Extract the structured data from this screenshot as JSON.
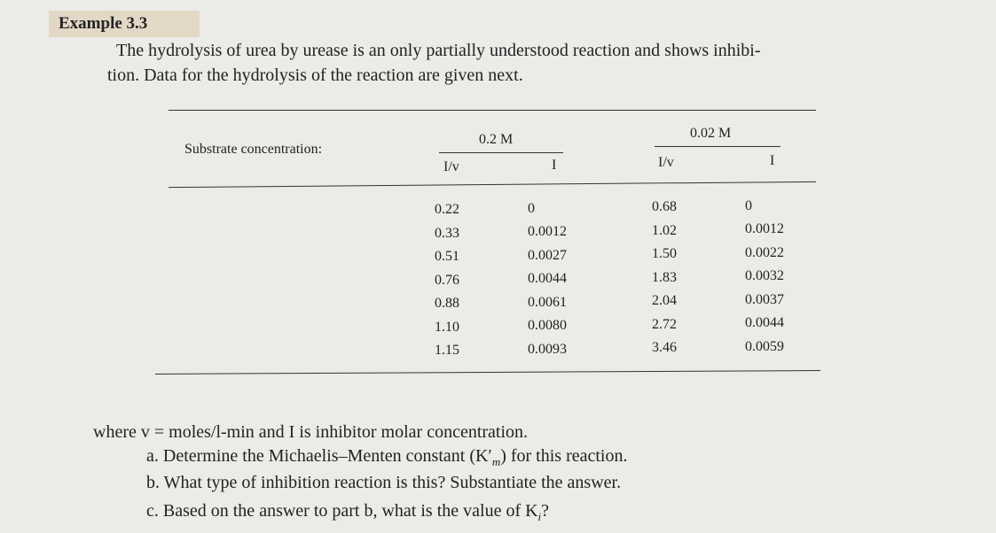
{
  "heading": "Example 3.3",
  "intro": {
    "lines": [
      "The hydrolysis of urea by urease is an only partially understood reaction and shows inhibi-",
      "tion. Data for the hydrolysis of the reaction are given next."
    ]
  },
  "table": {
    "row_label": "Substrate concentration:",
    "groups": [
      "0.2 M",
      "0.02 M"
    ],
    "columns": [
      "I/v",
      "I",
      "I/v",
      "I"
    ],
    "rows": [
      [
        "0.22",
        "0",
        "0.68",
        "0"
      ],
      [
        "0.33",
        "0.0012",
        "1.02",
        "0.0012"
      ],
      [
        "0.51",
        "0.0027",
        "1.50",
        "0.0022"
      ],
      [
        "0.76",
        "0.0044",
        "1.83",
        "0.0032"
      ],
      [
        "0.88",
        "0.0061",
        "2.04",
        "0.0037"
      ],
      [
        "1.10",
        "0.0080",
        "2.72",
        "0.0044"
      ],
      [
        "1.15",
        "0.0093",
        "3.46",
        "0.0059"
      ]
    ]
  },
  "note": "where v = moles/l-min and I is inhibitor molar concentration.",
  "questions": [
    {
      "parts": [
        "a. Determine the Michaelis–Menten constant (K′",
        "m",
        ") for this reaction."
      ]
    },
    {
      "parts": [
        "b. What type of inhibition reaction is this? Substantiate the answer."
      ]
    },
    {
      "parts": [
        "c. Based on the answer to part b, what is the value of K",
        "i",
        "?"
      ]
    }
  ]
}
